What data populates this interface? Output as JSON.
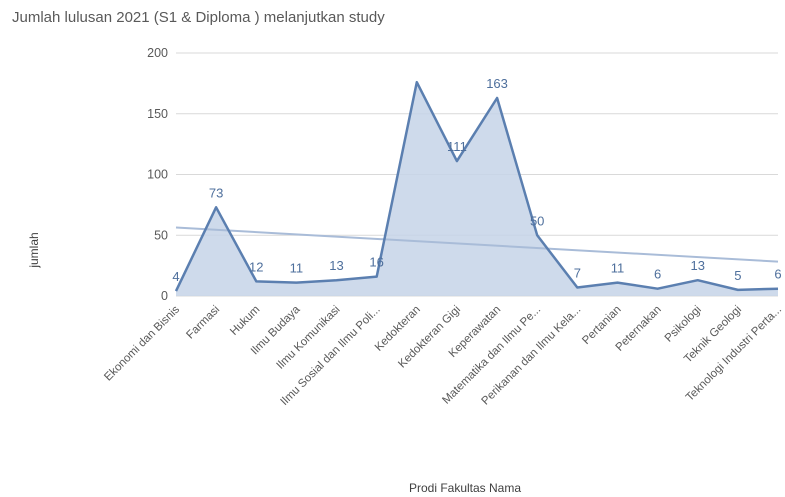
{
  "chart_data": {
    "type": "area",
    "title": "Jumlah lulusan 2021 (S1 & Diploma ) melanjutkan study",
    "xlabel": "Prodi Fakultas Nama",
    "ylabel": "jumlah",
    "ylim": [
      0,
      200
    ],
    "yticks": [
      "0",
      "50",
      "100",
      "150",
      "200"
    ],
    "grid": true,
    "trendline": true,
    "categories": [
      "Ekonomi dan Bisnis",
      "Farmasi",
      "Hukum",
      "Ilmu Budaya",
      "Ilmu Komunikasi",
      "Ilmu Sosial dan Ilmu Poli...",
      "Kedokteran",
      "Kedokteran Gigi",
      "Keperawatan",
      "Matematika dan Ilmu Pe...",
      "Perikanan dan Ilmu Kela...",
      "Pertanian",
      "Peternakan",
      "Psikologi",
      "Teknik Geologi",
      "Teknologi Industri Perta..."
    ],
    "values": [
      4,
      73,
      12,
      11,
      13,
      16,
      176,
      111,
      163,
      50,
      7,
      11,
      6,
      13,
      5,
      6
    ],
    "data_labels": [
      "4",
      "73",
      "12",
      "11",
      "13",
      "16",
      "",
      "111",
      "163",
      "50",
      "7",
      "11",
      "6",
      "13",
      "5",
      "6"
    ],
    "colors": {
      "line": "#5b7fb0",
      "fill": "#c5d3e8",
      "trend": "#a9bcd8",
      "labels": "#4e6f9c"
    }
  }
}
